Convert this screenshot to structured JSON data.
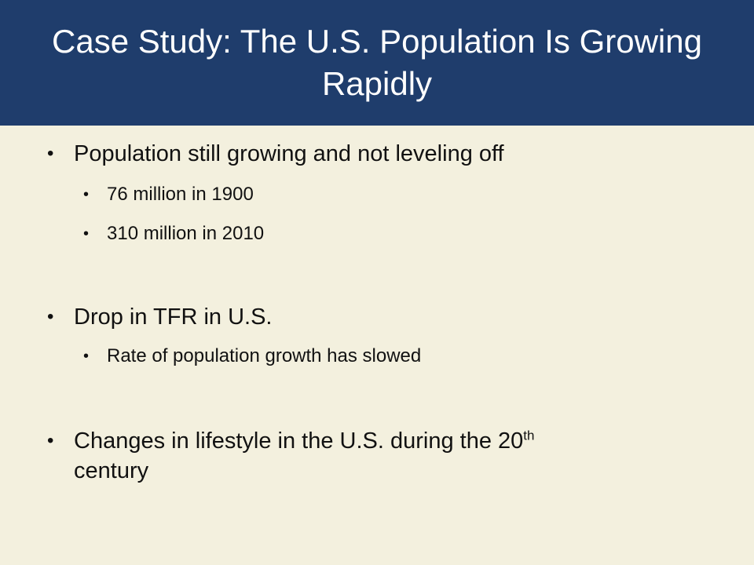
{
  "slide": {
    "title": "Case Study: The U.S. Population Is Growing Rapidly",
    "bullet_symbol": "•",
    "bullets": [
      {
        "text": "Population still growing and not leveling off",
        "sub": [
          {
            "text": "76 million in 1900"
          },
          {
            "text": "310 million in 2010"
          }
        ]
      },
      {
        "text": "Drop in TFR in U.S.",
        "sub": [
          {
            "text": "Rate of population growth has slowed"
          }
        ]
      },
      {
        "text_before_sup": "Changes in lifestyle in the U.S. during the 20",
        "sup": "th",
        "text_after_sup": "century"
      }
    ]
  },
  "colors": {
    "title_bar": "#1f3d6c",
    "title_text": "#ffffff",
    "background": "#f3f0de",
    "body_text": "#111111"
  }
}
